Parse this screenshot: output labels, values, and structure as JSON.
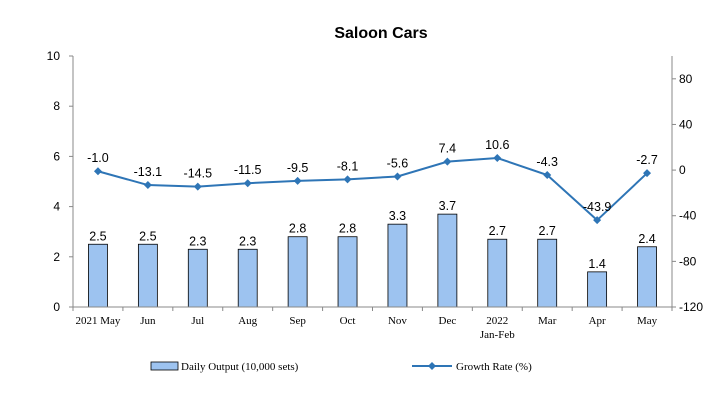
{
  "chart_data": {
    "type": "bar",
    "title": "Saloon Cars",
    "categories": [
      [
        "2021 May"
      ],
      [
        "Jun"
      ],
      [
        "Jul"
      ],
      [
        "Aug"
      ],
      [
        "Sep"
      ],
      [
        "Oct"
      ],
      [
        "Nov"
      ],
      [
        "Dec"
      ],
      [
        "2022",
        "Jan-Feb"
      ],
      [
        "Mar"
      ],
      [
        "Apr"
      ],
      [
        "May"
      ]
    ],
    "series": [
      {
        "name": "Daily Output (10,000 sets)",
        "type": "bar",
        "axis": "left",
        "color": "#9DC3F0",
        "values": [
          2.5,
          2.5,
          2.3,
          2.3,
          2.8,
          2.8,
          3.3,
          3.7,
          2.7,
          2.7,
          1.4,
          2.4
        ]
      },
      {
        "name": "Growth Rate (%)",
        "type": "line",
        "axis": "right",
        "color": "#2E75B6",
        "values": [
          -1.0,
          -13.1,
          -14.5,
          -11.5,
          -9.5,
          -8.1,
          -5.6,
          7.4,
          10.6,
          -4.3,
          -43.9,
          -2.7
        ]
      }
    ],
    "value_labels": {
      "bars": [
        "2.5",
        "2.5",
        "2.3",
        "2.3",
        "2.8",
        "2.8",
        "3.3",
        "3.7",
        "2.7",
        "2.7",
        "1.4",
        "2.4"
      ],
      "line": [
        "-1.0",
        "-13.1",
        "-14.5",
        "-11.5",
        "-9.5",
        "-8.1",
        "-5.6",
        "7.4",
        "10.6",
        "-4.3",
        "-43.9",
        "-2.7"
      ]
    },
    "y_left": {
      "range": [
        0,
        10
      ],
      "ticks": [
        "0",
        "2",
        "4",
        "6",
        "8",
        "10"
      ]
    },
    "y_right": {
      "range": [
        -120,
        100
      ],
      "ticks": [
        "-120",
        "-80",
        "-40",
        "0",
        "40",
        "80"
      ]
    },
    "grid": false,
    "legend_position": "bottom"
  }
}
